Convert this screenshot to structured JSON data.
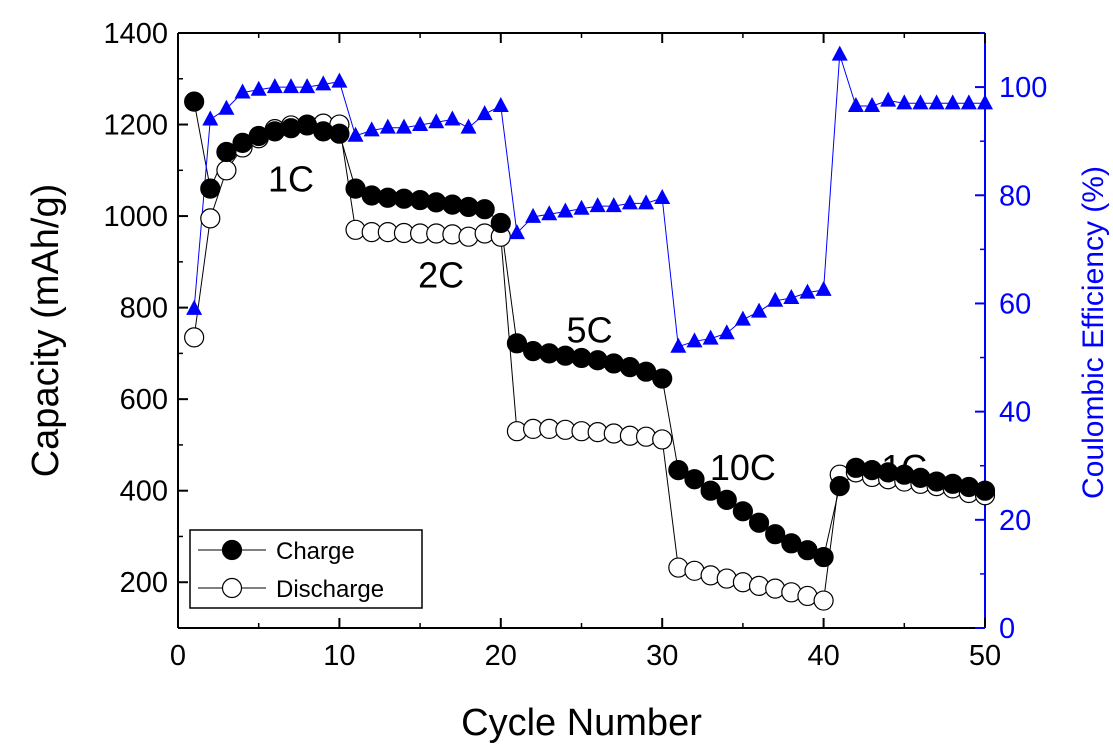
{
  "chart_data": {
    "type": "scatter",
    "xlabel": "Cycle Number",
    "ylabel": "Capacity (mAh/g)",
    "y2label": "Coulombic Efficiency (%)",
    "xlim": [
      0,
      50
    ],
    "ylim": [
      100,
      1400
    ],
    "y2lim": [
      0,
      110
    ],
    "xticks": [
      0,
      10,
      20,
      30,
      40,
      50
    ],
    "yticks": [
      200,
      400,
      600,
      800,
      1000,
      1200,
      1400
    ],
    "y2ticks": [
      0,
      20,
      40,
      60,
      80,
      100
    ],
    "legend_position": "bottom-left",
    "grid": false,
    "colors": {
      "axis": "#000000",
      "efficiency": "#0000ff",
      "charge": "#000000",
      "discharge": "#ffffff"
    },
    "x": [
      1,
      2,
      3,
      4,
      5,
      6,
      7,
      8,
      9,
      10,
      11,
      12,
      13,
      14,
      15,
      16,
      17,
      18,
      19,
      20,
      21,
      22,
      23,
      24,
      25,
      26,
      27,
      28,
      29,
      30,
      31,
      32,
      33,
      34,
      35,
      36,
      37,
      38,
      39,
      40,
      41,
      42,
      43,
      44,
      45,
      46,
      47,
      48,
      49,
      50
    ],
    "series": [
      {
        "name": "Charge",
        "axis": "left",
        "marker": "filled-circle",
        "values": [
          1250,
          1060,
          1140,
          1160,
          1175,
          1185,
          1192,
          1198,
          1185,
          1180,
          1060,
          1045,
          1040,
          1038,
          1035,
          1030,
          1025,
          1020,
          1015,
          985,
          722,
          705,
          700,
          695,
          690,
          685,
          678,
          670,
          660,
          645,
          445,
          425,
          400,
          380,
          355,
          330,
          305,
          285,
          270,
          255,
          410,
          450,
          445,
          440,
          435,
          428,
          420,
          415,
          408,
          400
        ]
      },
      {
        "name": "Discharge",
        "axis": "left",
        "marker": "open-circle",
        "values": [
          735,
          995,
          1100,
          1150,
          1170,
          1190,
          1198,
          1200,
          1202,
          1200,
          970,
          965,
          965,
          963,
          962,
          962,
          960,
          955,
          962,
          955,
          530,
          535,
          535,
          533,
          530,
          528,
          525,
          520,
          518,
          512,
          232,
          225,
          215,
          208,
          200,
          192,
          186,
          178,
          170,
          160,
          435,
          440,
          430,
          425,
          420,
          415,
          410,
          405,
          395,
          390
        ]
      },
      {
        "name": "Coulombic Efficiency",
        "axis": "right",
        "marker": "filled-triangle",
        "values": [
          59,
          94,
          96,
          99,
          99.5,
          100,
          100,
          100,
          100.5,
          101,
          91,
          92,
          92.5,
          92.5,
          93,
          93.5,
          94,
          92.5,
          95,
          96.5,
          73,
          76,
          76.5,
          77,
          77.5,
          78,
          78,
          78.5,
          78.5,
          79.5,
          52,
          53,
          53.5,
          54.5,
          57,
          58.5,
          60.5,
          61,
          62,
          62.5,
          106,
          96.5,
          96.5,
          97.5,
          97,
          97,
          97,
          97,
          97,
          97
        ]
      }
    ],
    "annotations": [
      {
        "text": "1C",
        "x": 7,
        "y": 1080
      },
      {
        "text": "2C",
        "x": 16.3,
        "y": 870
      },
      {
        "text": "5C",
        "x": 25.5,
        "y": 750
      },
      {
        "text": "10C",
        "x": 35,
        "y": 450
      },
      {
        "text": "1C",
        "x": 45,
        "y": 450
      }
    ]
  }
}
